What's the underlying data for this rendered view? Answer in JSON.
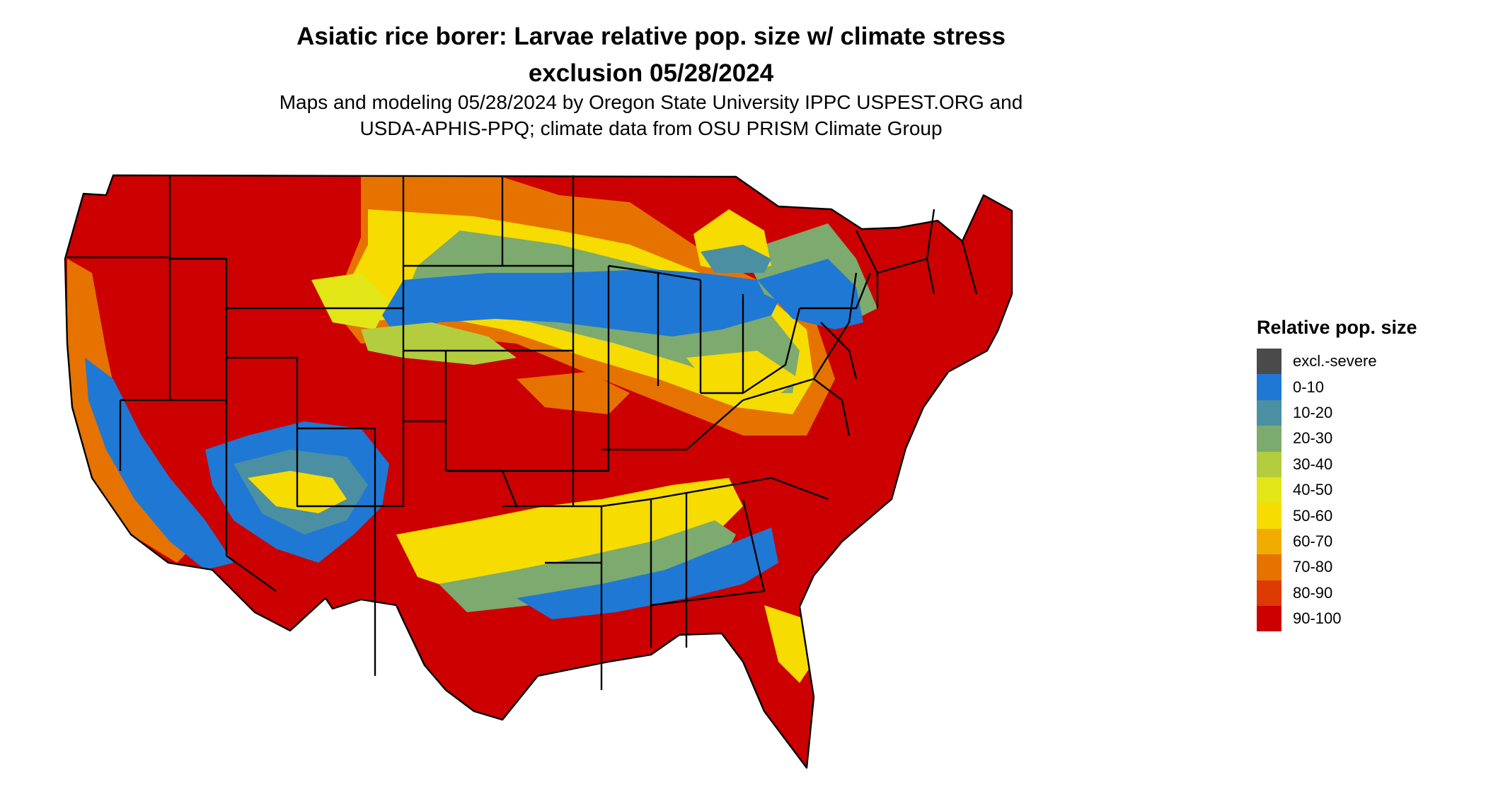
{
  "title_line1": "Asiatic rice borer: Larvae relative pop. size w/ climate stress",
  "title_line2": "exclusion 05/28/2024",
  "subtitle_line1": "Maps and modeling 05/28/2024 by Oregon State University IPPC USPEST.ORG and",
  "subtitle_line2": "USDA-APHIS-PPQ; climate data from OSU PRISM Climate Group",
  "legend": {
    "title": "Relative pop. size",
    "items": [
      {
        "label": "excl.-severe",
        "color": "#4a4a4a"
      },
      {
        "label": "0-10",
        "color": "#1f78d4"
      },
      {
        "label": "10-20",
        "color": "#4b8fa3"
      },
      {
        "label": "20-30",
        "color": "#7daa6e"
      },
      {
        "label": "30-40",
        "color": "#b3cd3e"
      },
      {
        "label": "40-50",
        "color": "#e2e617"
      },
      {
        "label": "50-60",
        "color": "#f6dc00"
      },
      {
        "label": "60-70",
        "color": "#f0ad00"
      },
      {
        "label": "70-80",
        "color": "#e67300"
      },
      {
        "label": "80-90",
        "color": "#dc3a00"
      },
      {
        "label": "90-100",
        "color": "#cc0000"
      }
    ]
  }
}
